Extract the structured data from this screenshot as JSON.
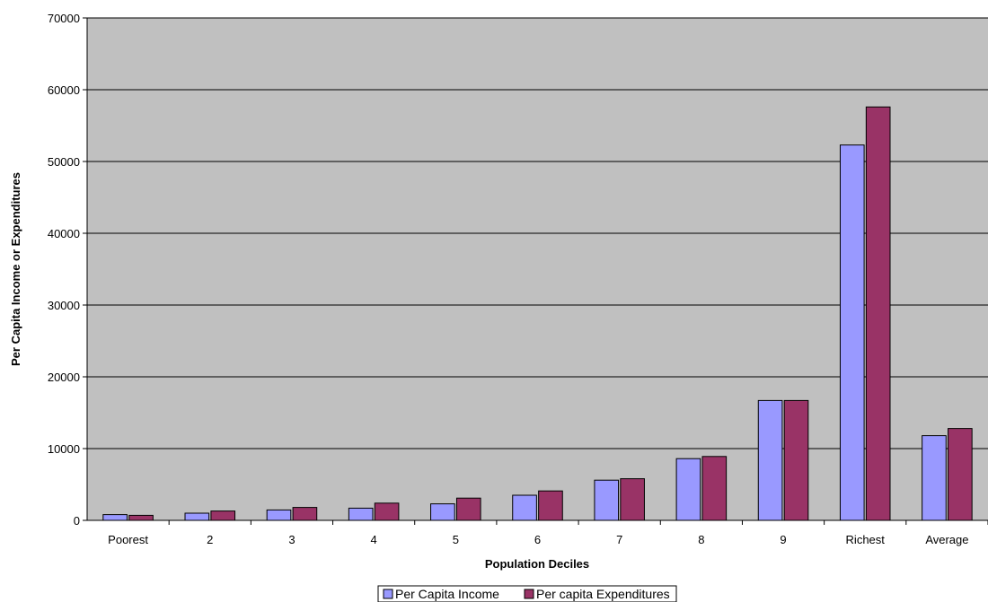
{
  "chart_data": {
    "type": "bar",
    "title": "",
    "xlabel": "Population Deciles",
    "ylabel": "Per Capita Income or Expenditures",
    "categories": [
      "Poorest",
      "2",
      "3",
      "4",
      "5",
      "6",
      "7",
      "8",
      "9",
      "Richest",
      "Average"
    ],
    "series": [
      {
        "name": "Per Capita Income",
        "color": "#9999ff",
        "values": [
          800,
          1000,
          1450,
          1700,
          2300,
          3500,
          5600,
          8600,
          16700,
          52300,
          11800
        ]
      },
      {
        "name": "Per capita Expenditures",
        "color": "#993366",
        "values": [
          700,
          1300,
          1800,
          2400,
          3100,
          4100,
          5800,
          8900,
          16700,
          57600,
          12800
        ]
      }
    ],
    "ylim": [
      0,
      70000
    ],
    "yticks": [
      0,
      10000,
      20000,
      30000,
      40000,
      50000,
      60000,
      70000
    ],
    "grid": true,
    "plot_background": "#c0c0c0",
    "legend_position": "bottom"
  }
}
